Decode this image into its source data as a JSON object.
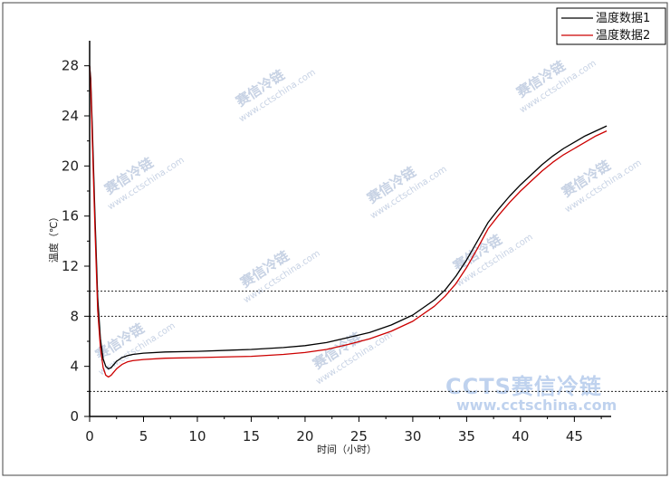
{
  "chart_data": {
    "type": "line",
    "title": "",
    "xlabel": "时间（小时）",
    "ylabel": "温度（℃）",
    "xlim": [
      0,
      48.5
    ],
    "ylim": [
      0,
      30
    ],
    "xticks": [
      0,
      5,
      10,
      15,
      20,
      25,
      30,
      35,
      40,
      45
    ],
    "yticks": [
      0,
      4,
      8,
      12,
      16,
      20,
      24,
      28
    ],
    "reference_lines": [
      2,
      8,
      10
    ],
    "grid": false,
    "legend_position": "top-right",
    "series": [
      {
        "name": "温度数据1",
        "color": "#000000",
        "points": [
          [
            0,
            28
          ],
          [
            0.1,
            27
          ],
          [
            0.25,
            23
          ],
          [
            0.5,
            16
          ],
          [
            0.75,
            9.5
          ],
          [
            1.0,
            6.2
          ],
          [
            1.25,
            4.6
          ],
          [
            1.5,
            4.0
          ],
          [
            1.75,
            3.8
          ],
          [
            2.0,
            3.9
          ],
          [
            2.5,
            4.4
          ],
          [
            3.0,
            4.7
          ],
          [
            3.5,
            4.85
          ],
          [
            4.0,
            4.95
          ],
          [
            5.0,
            5.05
          ],
          [
            7.0,
            5.15
          ],
          [
            10.0,
            5.2
          ],
          [
            15.0,
            5.35
          ],
          [
            18.0,
            5.5
          ],
          [
            20.0,
            5.65
          ],
          [
            22.0,
            5.9
          ],
          [
            24.0,
            6.3
          ],
          [
            26.0,
            6.7
          ],
          [
            28.0,
            7.3
          ],
          [
            30.0,
            8.1
          ],
          [
            32.0,
            9.3
          ],
          [
            33.0,
            10.1
          ],
          [
            34.0,
            11.2
          ],
          [
            35.0,
            12.5
          ],
          [
            36.0,
            14.0
          ],
          [
            37.0,
            15.5
          ],
          [
            38.0,
            16.6
          ],
          [
            39.0,
            17.6
          ],
          [
            40.0,
            18.5
          ],
          [
            41.0,
            19.3
          ],
          [
            42.0,
            20.1
          ],
          [
            43.0,
            20.8
          ],
          [
            44.0,
            21.4
          ],
          [
            45.0,
            21.9
          ],
          [
            46.0,
            22.4
          ],
          [
            47.0,
            22.8
          ],
          [
            48.0,
            23.2
          ]
        ]
      },
      {
        "name": "温度数据2",
        "color": "#cc0000",
        "points": [
          [
            0,
            28
          ],
          [
            0.1,
            26.5
          ],
          [
            0.25,
            22
          ],
          [
            0.5,
            15
          ],
          [
            0.75,
            8.5
          ],
          [
            1.0,
            5.5
          ],
          [
            1.25,
            3.9
          ],
          [
            1.5,
            3.3
          ],
          [
            1.75,
            3.15
          ],
          [
            2.0,
            3.3
          ],
          [
            2.5,
            3.8
          ],
          [
            3.0,
            4.15
          ],
          [
            3.5,
            4.35
          ],
          [
            4.0,
            4.45
          ],
          [
            5.0,
            4.55
          ],
          [
            7.0,
            4.65
          ],
          [
            10.0,
            4.7
          ],
          [
            15.0,
            4.8
          ],
          [
            18.0,
            4.95
          ],
          [
            20.0,
            5.1
          ],
          [
            22.0,
            5.35
          ],
          [
            24.0,
            5.75
          ],
          [
            26.0,
            6.2
          ],
          [
            28.0,
            6.8
          ],
          [
            30.0,
            7.6
          ],
          [
            32.0,
            8.8
          ],
          [
            33.0,
            9.6
          ],
          [
            34.0,
            10.6
          ],
          [
            35.0,
            11.9
          ],
          [
            36.0,
            13.4
          ],
          [
            37.0,
            15.0
          ],
          [
            38.0,
            16.1
          ],
          [
            39.0,
            17.1
          ],
          [
            40.0,
            18.0
          ],
          [
            41.0,
            18.8
          ],
          [
            42.0,
            19.6
          ],
          [
            43.0,
            20.3
          ],
          [
            44.0,
            20.9
          ],
          [
            45.0,
            21.4
          ],
          [
            46.0,
            21.9
          ],
          [
            47.0,
            22.4
          ],
          [
            48.0,
            22.8
          ]
        ]
      }
    ]
  },
  "watermarks": {
    "small_cn": "赛信冷链",
    "small_url": "www.cctschina.com",
    "brand_title": "CCTS赛信冷链",
    "brand_url": "www.cctschina.com"
  }
}
